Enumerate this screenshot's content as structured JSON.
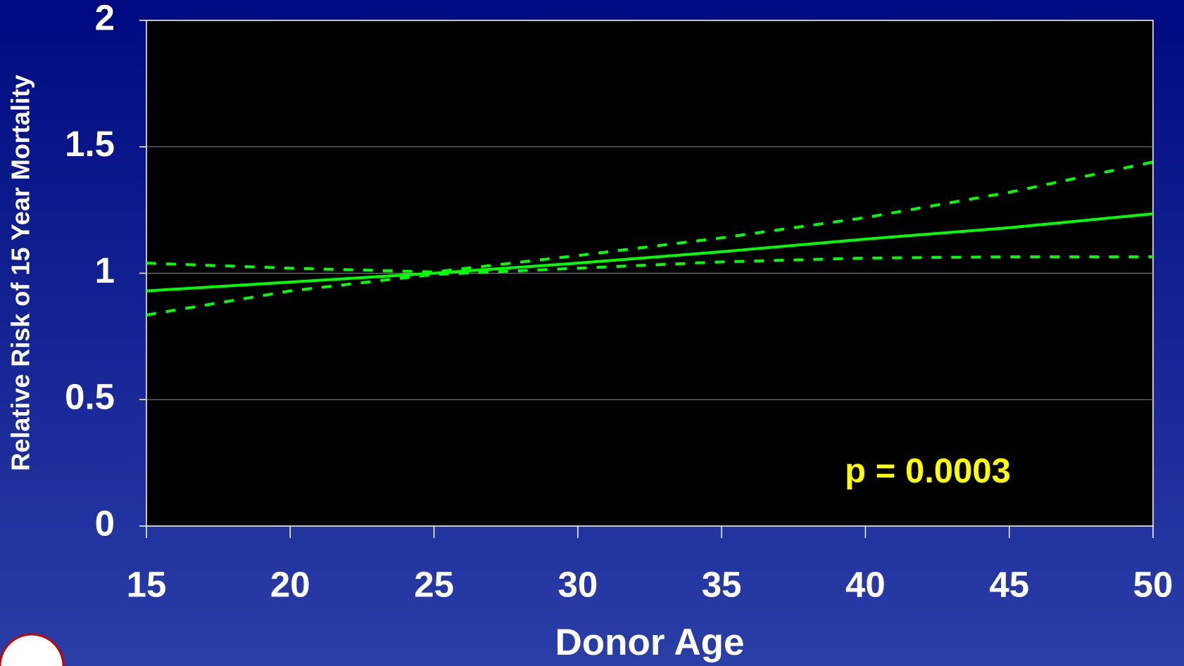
{
  "chart_data": {
    "type": "line",
    "x_label": "Donor Age",
    "y_label": "Relative Risk of 15 Year Mortality",
    "annotation": "p = 0.0003",
    "x": [
      15,
      20,
      25,
      30,
      35,
      40,
      45,
      50
    ],
    "series": [
      {
        "color": "#00ff00",
        "line_style": "solid",
        "values": [
          0.93,
          0.965,
          1.0,
          1.04,
          1.085,
          1.135,
          1.18,
          1.235
        ]
      },
      {
        "color": "#00ff00",
        "line_style": "dashed",
        "values": [
          1.04,
          1.02,
          1.005,
          1.07,
          1.14,
          1.22,
          1.32,
          1.44
        ]
      },
      {
        "color": "#00ff00",
        "line_style": "dashed",
        "values": [
          0.835,
          0.93,
          0.995,
          1.02,
          1.045,
          1.06,
          1.065,
          1.065
        ]
      }
    ],
    "xlim": [
      15,
      50
    ],
    "xticks": [
      15,
      20,
      25,
      30,
      35,
      40,
      45,
      50
    ],
    "ylim": [
      0,
      2
    ],
    "yticks": [
      0,
      0.5,
      1,
      1.5,
      2
    ],
    "grid": true
  }
}
